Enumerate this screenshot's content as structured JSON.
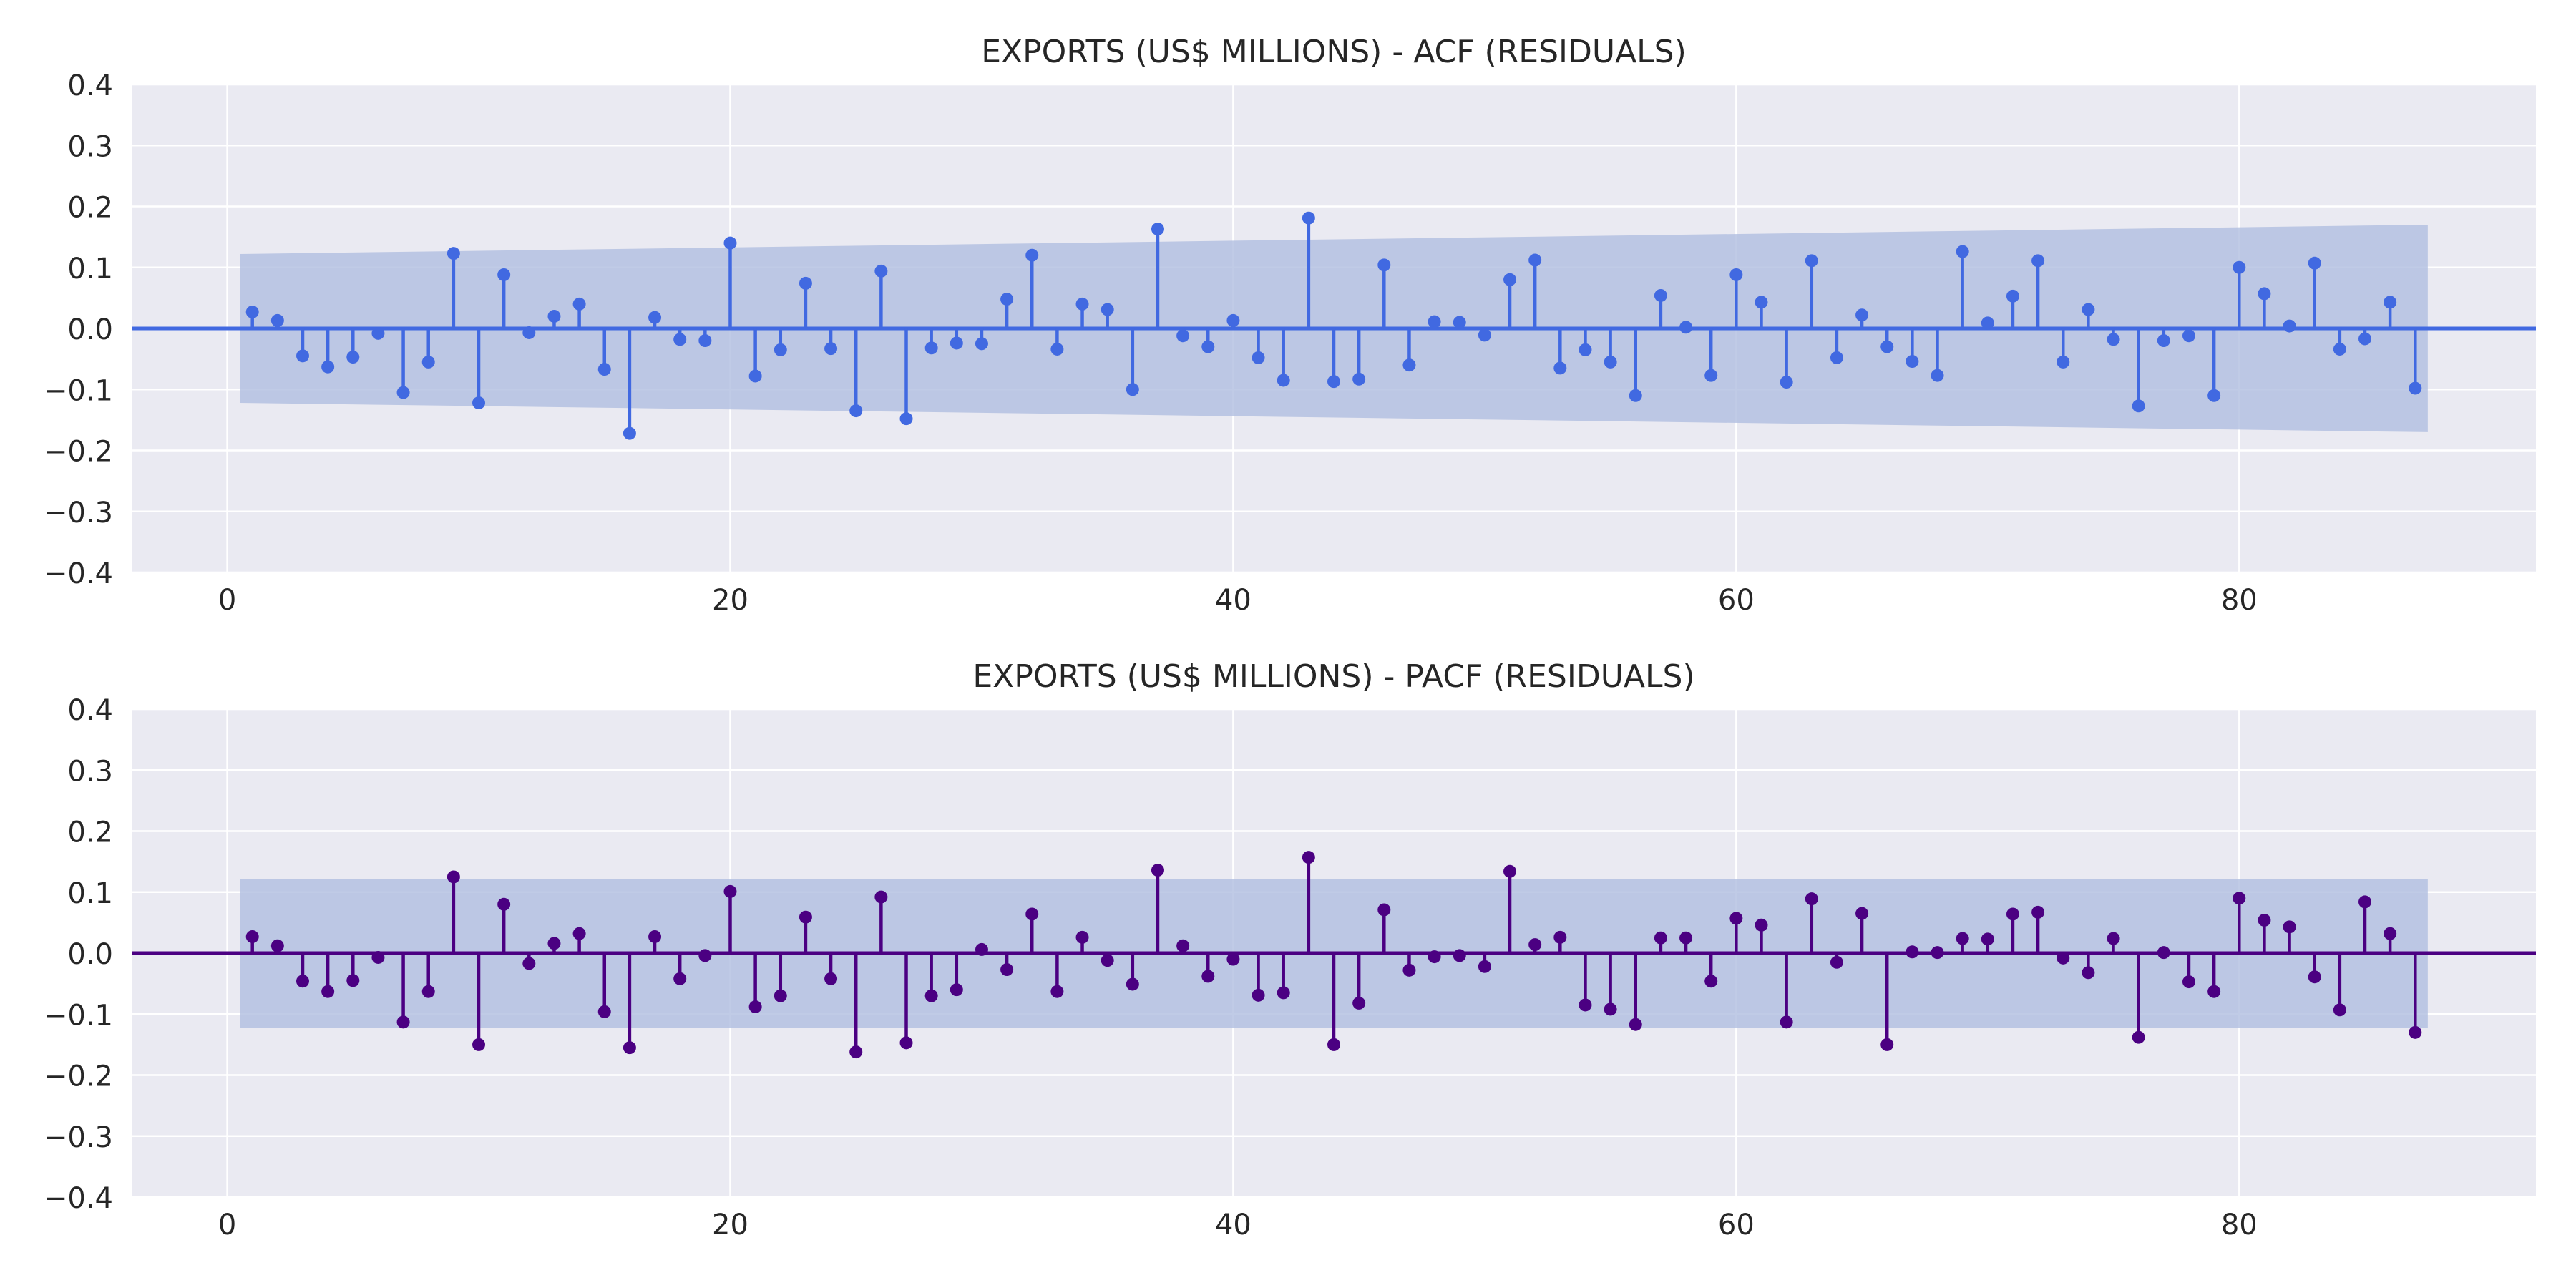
{
  "chart_data": [
    {
      "type": "stem",
      "title": "EXPORTS (US$ MILLIONS) - ACF (RESIDUALS)",
      "xlabel": "",
      "ylabel": "",
      "xlim": [
        -3.8,
        91.8
      ],
      "ylim": [
        -0.4,
        0.4
      ],
      "xticks": [
        0,
        20,
        40,
        60,
        80
      ],
      "yticks": [
        -0.4,
        -0.3,
        -0.2,
        -0.1,
        0.0,
        0.1,
        0.2,
        0.3,
        0.4
      ],
      "ytick_labels": [
        "−0.4",
        "−0.3",
        "−0.2",
        "−0.1",
        "0.0",
        "0.1",
        "0.2",
        "0.3",
        "0.4"
      ],
      "xtick_labels": [
        "0",
        "20",
        "40",
        "60",
        "80"
      ],
      "grid": true,
      "colors": {
        "stem": "#4169e1",
        "confidence_band": "#b0bee0",
        "background": "#eaeaf2",
        "grid": "#ffffff"
      },
      "lags": [
        1,
        2,
        3,
        4,
        5,
        6,
        7,
        8,
        9,
        10,
        11,
        12,
        13,
        14,
        15,
        16,
        17,
        18,
        19,
        20,
        21,
        22,
        23,
        24,
        25,
        26,
        27,
        28,
        29,
        30,
        31,
        32,
        33,
        34,
        35,
        36,
        37,
        38,
        39,
        40,
        41,
        42,
        43,
        44,
        45,
        46,
        47,
        48,
        49,
        50,
        51,
        52,
        53,
        54,
        55,
        56,
        57,
        58,
        59,
        60,
        61,
        62,
        63,
        64,
        65,
        66,
        67,
        68,
        69,
        70,
        71,
        72,
        73,
        74,
        75,
        76,
        77,
        78,
        79,
        80,
        81,
        82,
        83,
        84,
        85,
        86,
        87
      ],
      "values": [
        0.027,
        0.013,
        -0.045,
        -0.063,
        -0.047,
        -0.008,
        -0.105,
        -0.055,
        0.123,
        -0.122,
        0.088,
        -0.007,
        0.02,
        0.04,
        -0.067,
        -0.172,
        0.018,
        -0.018,
        -0.02,
        0.14,
        -0.078,
        -0.035,
        0.074,
        -0.033,
        -0.135,
        0.094,
        -0.148,
        -0.032,
        -0.024,
        -0.025,
        0.048,
        0.12,
        -0.034,
        0.04,
        0.031,
        -0.1,
        0.163,
        -0.012,
        -0.03,
        0.013,
        -0.048,
        -0.085,
        0.181,
        -0.087,
        -0.083,
        0.104,
        -0.06,
        0.011,
        0.01,
        -0.011,
        0.08,
        0.112,
        -0.065,
        -0.035,
        -0.055,
        -0.11,
        0.054,
        0.002,
        -0.077,
        0.088,
        0.043,
        -0.088,
        0.111,
        -0.048,
        0.022,
        -0.03,
        -0.054,
        -0.077,
        0.126,
        0.009,
        0.053,
        0.111,
        -0.055,
        0.031,
        -0.018,
        -0.127,
        -0.02,
        -0.012,
        -0.11,
        0.1,
        0.057,
        0.004,
        0.107,
        -0.034,
        -0.017,
        0.043,
        -0.098
      ],
      "confidence_band": {
        "from_lag": 0.5,
        "to_lag": 87.5,
        "start": 0.122,
        "end": 0.17
      }
    },
    {
      "type": "stem",
      "title": "EXPORTS (US$ MILLIONS) - PACF (RESIDUALS)",
      "xlabel": "",
      "ylabel": "",
      "xlim": [
        -3.8,
        91.8
      ],
      "ylim": [
        -0.4,
        0.4
      ],
      "xticks": [
        0,
        20,
        40,
        60,
        80
      ],
      "yticks": [
        -0.4,
        -0.3,
        -0.2,
        -0.1,
        0.0,
        0.1,
        0.2,
        0.3,
        0.4
      ],
      "ytick_labels": [
        "−0.4",
        "−0.3",
        "−0.2",
        "−0.1",
        "0.0",
        "0.1",
        "0.2",
        "0.3",
        "0.4"
      ],
      "xtick_labels": [
        "0",
        "20",
        "40",
        "60",
        "80"
      ],
      "grid": true,
      "colors": {
        "stem": "#4b0082",
        "confidence_band": "#b0bee0",
        "background": "#eaeaf2",
        "grid": "#ffffff"
      },
      "lags": [
        1,
        2,
        3,
        4,
        5,
        6,
        7,
        8,
        9,
        10,
        11,
        12,
        13,
        14,
        15,
        16,
        17,
        18,
        19,
        20,
        21,
        22,
        23,
        24,
        25,
        26,
        27,
        28,
        29,
        30,
        31,
        32,
        33,
        34,
        35,
        36,
        37,
        38,
        39,
        40,
        41,
        42,
        43,
        44,
        45,
        46,
        47,
        48,
        49,
        50,
        51,
        52,
        53,
        54,
        55,
        56,
        57,
        58,
        59,
        60,
        61,
        62,
        63,
        64,
        65,
        66,
        67,
        68,
        69,
        70,
        71,
        72,
        73,
        74,
        75,
        76,
        77,
        78,
        79,
        80,
        81,
        82,
        83,
        84,
        85,
        86,
        87
      ],
      "values": [
        0.027,
        0.012,
        -0.046,
        -0.063,
        -0.045,
        -0.007,
        -0.113,
        -0.063,
        0.125,
        -0.15,
        0.08,
        -0.017,
        0.016,
        0.032,
        -0.096,
        -0.155,
        0.027,
        -0.042,
        -0.004,
        0.101,
        -0.088,
        -0.07,
        0.059,
        -0.042,
        -0.162,
        0.092,
        -0.147,
        -0.07,
        -0.06,
        0.006,
        -0.027,
        0.064,
        -0.063,
        0.026,
        -0.012,
        -0.051,
        0.136,
        0.012,
        -0.038,
        -0.01,
        -0.069,
        -0.065,
        0.157,
        -0.15,
        -0.082,
        0.071,
        -0.028,
        -0.006,
        -0.004,
        -0.022,
        0.134,
        0.014,
        0.026,
        -0.085,
        -0.092,
        -0.117,
        0.025,
        0.025,
        -0.046,
        0.057,
        0.046,
        -0.113,
        0.089,
        -0.015,
        0.065,
        -0.15,
        0.002,
        0.001,
        0.024,
        0.023,
        0.064,
        0.067,
        -0.008,
        -0.032,
        0.024,
        -0.138,
        0.001,
        -0.047,
        -0.063,
        0.09,
        0.054,
        0.043,
        -0.039,
        -0.093,
        0.084,
        0.032,
        -0.13
      ],
      "confidence_band": {
        "from_lag": 0.5,
        "to_lag": 87.5,
        "start": 0.122,
        "end": 0.122
      }
    }
  ]
}
